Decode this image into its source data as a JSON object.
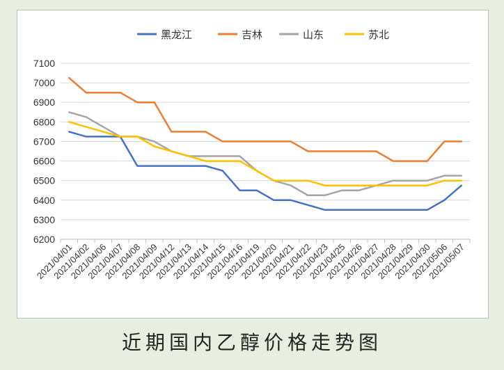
{
  "caption": "近期国内乙醇价格走势图",
  "chart_data": {
    "type": "line",
    "title": "",
    "xlabel": "",
    "ylabel": "",
    "ylim": [
      6200,
      7100
    ],
    "ytick_step": 100,
    "grid": "horizontal",
    "legend_position": "top",
    "categories": [
      "2021/04/01",
      "2021/04/02",
      "2021/04/06",
      "2021/04/07",
      "2021/04/08",
      "2021/04/09",
      "2021/04/12",
      "2021/04/13",
      "2021/04/14",
      "2021/04/15",
      "2021/04/16",
      "2021/04/19",
      "2021/04/20",
      "2021/04/21",
      "2021/04/22",
      "2021/04/23",
      "2021/04/25",
      "2021/04/26",
      "2021/04/27",
      "2021/04/28",
      "2021/04/29",
      "2021/04/30",
      "2021/05/06",
      "2021/05/07"
    ],
    "series": [
      {
        "name": "黑龙江",
        "color": "#4472c4",
        "values": [
          6750,
          6725,
          6725,
          6725,
          6575,
          6575,
          6575,
          6575,
          6575,
          6550,
          6450,
          6450,
          6400,
          6400,
          6375,
          6350,
          6350,
          6350,
          6350,
          6350,
          6350,
          6350,
          6400,
          6475
        ]
      },
      {
        "name": "吉林",
        "color": "#ed7d31",
        "values": [
          7025,
          6950,
          6950,
          6950,
          6900,
          6900,
          6750,
          6750,
          6750,
          6700,
          6700,
          6700,
          6700,
          6700,
          6650,
          6650,
          6650,
          6650,
          6650,
          6600,
          6600,
          6600,
          6700,
          6700
        ]
      },
      {
        "name": "山东",
        "color": "#a5a5a5",
        "values": [
          6850,
          6825,
          6775,
          6725,
          6725,
          6700,
          6650,
          6625,
          6625,
          6625,
          6625,
          6550,
          6500,
          6475,
          6425,
          6425,
          6450,
          6450,
          6475,
          6500,
          6500,
          6500,
          6525,
          6525
        ]
      },
      {
        "name": "苏北",
        "color": "#ffc000",
        "values": [
          6800,
          6775,
          6750,
          6725,
          6725,
          6675,
          6650,
          6625,
          6600,
          6600,
          6600,
          6550,
          6500,
          6500,
          6500,
          6475,
          6475,
          6475,
          6475,
          6475,
          6475,
          6475,
          6500,
          6500
        ]
      }
    ]
  }
}
